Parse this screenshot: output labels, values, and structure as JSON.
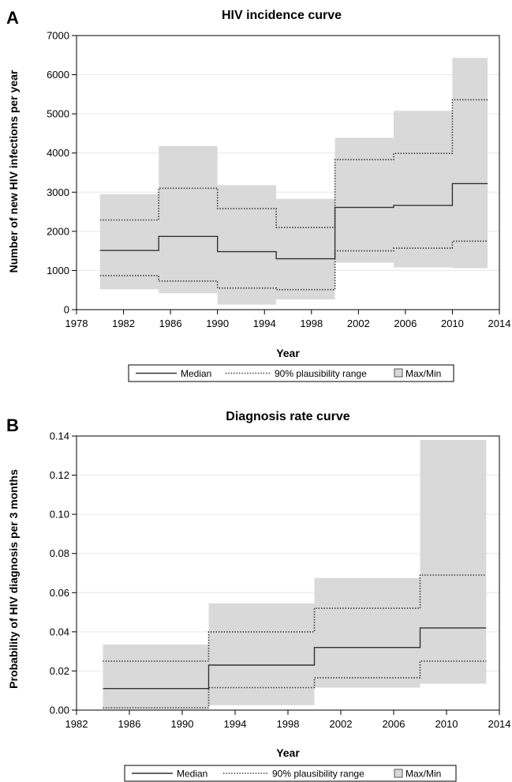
{
  "colors": {
    "band_fill": "#d9d9d9",
    "line": "#333333",
    "gridline": "#e6e6e6",
    "frame": "#000000",
    "legend_swatch": "#d9d9d9"
  },
  "chart_data": [
    {
      "panel_label": "A",
      "type": "area",
      "title": "HIV incidence curve",
      "xlabel": "Year",
      "ylabel": "Number of new HIV infections per year",
      "xlim": [
        1978,
        2014
      ],
      "ylim": [
        0,
        7000
      ],
      "x_ticks": [
        1978,
        1982,
        1986,
        1990,
        1994,
        1998,
        2002,
        2006,
        2010,
        2014
      ],
      "y_ticks": [
        0,
        1000,
        2000,
        3000,
        4000,
        5000,
        6000,
        7000
      ],
      "x_tick_labels": [
        "1978",
        "1982",
        "1986",
        "1990",
        "1994",
        "1998",
        "2002",
        "2006",
        "2010",
        "2014"
      ],
      "y_tick_labels": [
        "0",
        "1000",
        "2000",
        "3000",
        "4000",
        "5000",
        "6000",
        "7000"
      ],
      "grid": "horizontal",
      "legend": {
        "position": "bottom",
        "entries": [
          "Median",
          "90% plausibility range",
          "Max/Min"
        ]
      },
      "x": [
        1980,
        1984,
        1985,
        1989,
        1990,
        1994,
        1995,
        1999,
        2000,
        2004,
        2005,
        2009,
        2010,
        2013
      ],
      "series": [
        {
          "name": "Max/Min",
          "role": "band",
          "upper": [
            2950,
            2950,
            4180,
            4180,
            3180,
            3180,
            2830,
            2830,
            4390,
            4390,
            5080,
            5080,
            6430,
            6430
          ],
          "lower": [
            520,
            520,
            420,
            420,
            130,
            130,
            260,
            260,
            1200,
            1200,
            1080,
            1080,
            1060,
            1060
          ]
        },
        {
          "name": "90% plausibility range",
          "role": "dotted_upper",
          "values": [
            2290,
            2290,
            3100,
            3100,
            2580,
            2580,
            2100,
            2100,
            3830,
            3830,
            3990,
            3990,
            5360,
            5360
          ]
        },
        {
          "name": "90% plausibility range",
          "role": "dotted_lower",
          "values": [
            870,
            870,
            730,
            730,
            550,
            550,
            510,
            510,
            1500,
            1500,
            1570,
            1570,
            1750,
            1750
          ]
        },
        {
          "name": "Median",
          "role": "median",
          "values": [
            1510,
            1510,
            1870,
            1870,
            1480,
            1480,
            1300,
            1300,
            2610,
            2610,
            2660,
            2660,
            3220,
            3220
          ]
        }
      ]
    },
    {
      "panel_label": "B",
      "type": "area",
      "title": "Diagnosis rate curve",
      "xlabel": "Year",
      "ylabel": "Probability of HIV diagnosis per 3 months",
      "xlim": [
        1982,
        2014
      ],
      "ylim": [
        0,
        0.14
      ],
      "x_ticks": [
        1982,
        1986,
        1990,
        1994,
        1998,
        2002,
        2006,
        2010,
        2014
      ],
      "y_ticks": [
        0,
        0.02,
        0.04,
        0.06,
        0.08,
        0.1,
        0.12,
        0.14
      ],
      "x_tick_labels": [
        "1982",
        "1986",
        "1990",
        "1994",
        "1998",
        "2002",
        "2006",
        "2010",
        "2014"
      ],
      "y_tick_labels": [
        "0.00",
        "0.02",
        "0.04",
        "0.06",
        "0.08",
        "0.10",
        "0.12",
        "0.14"
      ],
      "grid": "horizontal",
      "legend": {
        "position": "bottom",
        "entries": [
          "Median",
          "90% plausibility range",
          "Max/Min"
        ]
      },
      "x": [
        1984,
        1991,
        1992,
        1999,
        2000,
        2007,
        2008,
        2013
      ],
      "series": [
        {
          "name": "Max/Min",
          "role": "band",
          "upper": [
            0.0335,
            0.0335,
            0.0545,
            0.0545,
            0.0675,
            0.0675,
            0.138,
            0.138
          ],
          "lower": [
            0.0003,
            0.0003,
            0.0025,
            0.0025,
            0.0115,
            0.0115,
            0.0135,
            0.0135
          ]
        },
        {
          "name": "90% plausibility range",
          "role": "dotted_upper",
          "values": [
            0.025,
            0.025,
            0.04,
            0.04,
            0.052,
            0.052,
            0.069,
            0.069
          ]
        },
        {
          "name": "90% plausibility range",
          "role": "dotted_lower",
          "values": [
            0.0012,
            0.0012,
            0.0115,
            0.0115,
            0.0165,
            0.0165,
            0.025,
            0.025
          ]
        },
        {
          "name": "Median",
          "role": "median",
          "values": [
            0.011,
            0.011,
            0.023,
            0.023,
            0.032,
            0.032,
            0.042,
            0.042
          ]
        }
      ]
    }
  ]
}
